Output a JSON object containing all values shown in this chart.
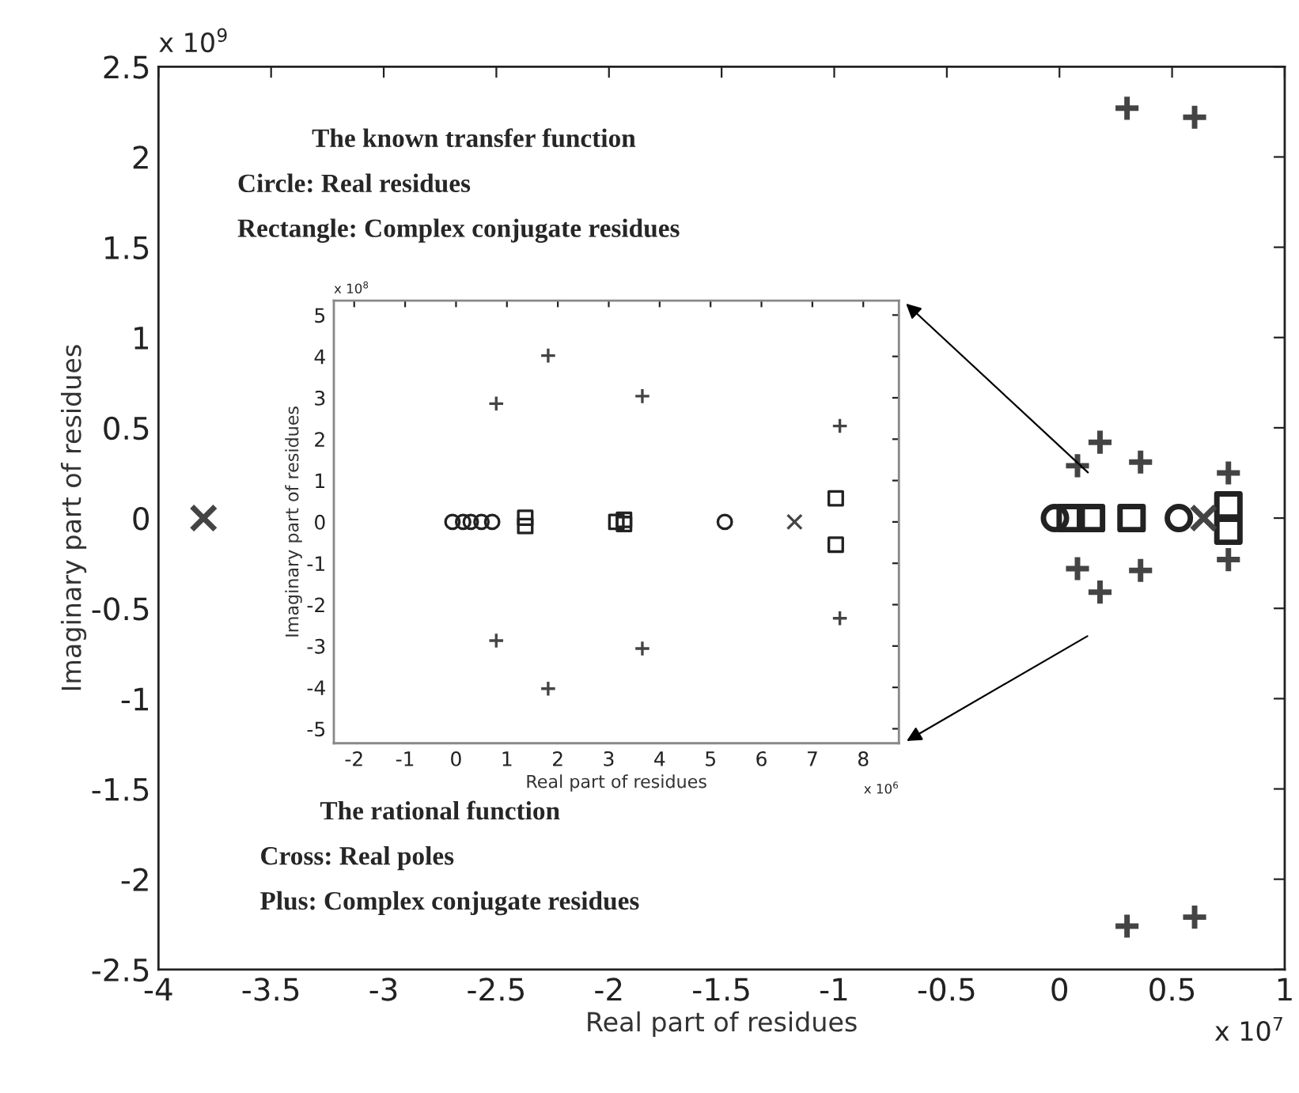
{
  "chart_data": [
    {
      "type": "scatter",
      "xlabel": "Real part of residues",
      "ylabel": "Imaginary part of residues",
      "xlim": [
        -4,
        1
      ],
      "ylim": [
        -2.5,
        2.5
      ],
      "xticks": [
        -4,
        -3.5,
        -3,
        -2.5,
        -2,
        -1.5,
        -1,
        -0.5,
        0,
        0.5,
        1
      ],
      "yticks": [
        -2.5,
        -2,
        -1.5,
        -1,
        -0.5,
        0,
        0.5,
        1,
        1.5,
        2,
        2.5
      ],
      "grid": false,
      "annotations": [
        "x 10$^{9}$",
        "x 10$^{7}$",
        "The known transfer function",
        "Circle: Real residues",
        "Rectangle: Complex conjugate residues",
        "The rational function",
        "Cross: Real poles",
        "Plus: Complex conjugate residues"
      ],
      "series": [
        {
          "marker": "circle",
          "color": "#222222",
          "x": [
            -0.02,
            0.53
          ],
          "values": [
            0,
            0
          ]
        },
        {
          "marker": "square",
          "color": "#222222",
          "x": [
            0.05,
            0.14,
            0.32,
            0.75,
            0.75
          ],
          "values": [
            0,
            0,
            0,
            0.07,
            -0.07
          ]
        },
        {
          "marker": "cross",
          "color": "#444444",
          "x": [
            -3.8,
            0.64
          ],
          "values": [
            0,
            0
          ]
        },
        {
          "marker": "plus",
          "color": "#444444",
          "x": [
            0.3,
            0.6,
            0.3,
            0.6,
            0.08,
            0.18,
            0.36,
            0.08,
            0.18,
            0.36,
            0.75,
            0.75
          ],
          "values": [
            2.27,
            2.22,
            -2.26,
            -2.21,
            0.29,
            0.42,
            0.31,
            -0.28,
            -0.41,
            -0.29,
            0.25,
            -0.23
          ]
        }
      ]
    },
    {
      "type": "scatter",
      "xlabel": "Real part of residues",
      "ylabel": "Imaginary part of residues",
      "xlim": [
        -2.4,
        8.7
      ],
      "ylim": [
        -5.35,
        5.35
      ],
      "xticks": [
        -2,
        -1,
        0,
        1,
        2,
        3,
        4,
        5,
        6,
        7,
        8
      ],
      "yticks": [
        -5,
        -4,
        -3,
        -2,
        -1,
        0,
        1,
        2,
        3,
        4,
        5
      ],
      "grid": false,
      "annotations": [
        "x 10$^{8}$",
        "x 10$^{6}$"
      ],
      "series": [
        {
          "marker": "circle",
          "color": "#222222",
          "x": [
            -0.07,
            0.14,
            0.29,
            0.5,
            0.71,
            5.28
          ],
          "values": [
            0,
            0,
            0,
            0,
            0,
            0
          ]
        },
        {
          "marker": "square",
          "color": "#222222",
          "x": [
            1.36,
            1.36,
            3.15,
            3.3,
            3.3,
            7.46,
            7.46
          ],
          "values": [
            0.1,
            -0.1,
            0,
            0.05,
            -0.05,
            0.57,
            -0.55
          ]
        },
        {
          "marker": "cross",
          "color": "#444444",
          "x": [
            6.65
          ],
          "values": [
            0
          ]
        },
        {
          "marker": "plus",
          "color": "#444444",
          "x": [
            0.79,
            1.81,
            3.66,
            7.54,
            0.79,
            1.81,
            3.66,
            7.54
          ],
          "values": [
            2.86,
            4.02,
            3.04,
            2.32,
            -2.87,
            -4.03,
            -3.06,
            -2.33
          ]
        }
      ]
    }
  ]
}
